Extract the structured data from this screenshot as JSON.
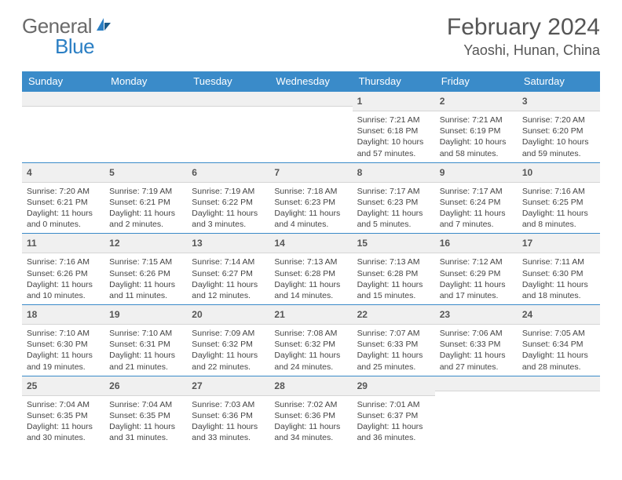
{
  "logo": {
    "text1": "General",
    "text2": "Blue"
  },
  "header": {
    "month_title": "February 2024",
    "location": "Yaoshi, Hunan, China"
  },
  "style": {
    "header_bg": "#3a8bc9",
    "header_fg": "#ffffff",
    "daynum_bg": "#f0f0f0",
    "daynum_border_top": "#3a8bc9",
    "body_fontsize": 10.5
  },
  "weekdays": [
    "Sunday",
    "Monday",
    "Tuesday",
    "Wednesday",
    "Thursday",
    "Friday",
    "Saturday"
  ],
  "weeks": [
    [
      null,
      null,
      null,
      null,
      {
        "n": "1",
        "sr": "Sunrise: 7:21 AM",
        "ss": "Sunset: 6:18 PM",
        "dl": "Daylight: 10 hours and 57 minutes."
      },
      {
        "n": "2",
        "sr": "Sunrise: 7:21 AM",
        "ss": "Sunset: 6:19 PM",
        "dl": "Daylight: 10 hours and 58 minutes."
      },
      {
        "n": "3",
        "sr": "Sunrise: 7:20 AM",
        "ss": "Sunset: 6:20 PM",
        "dl": "Daylight: 10 hours and 59 minutes."
      }
    ],
    [
      {
        "n": "4",
        "sr": "Sunrise: 7:20 AM",
        "ss": "Sunset: 6:21 PM",
        "dl": "Daylight: 11 hours and 0 minutes."
      },
      {
        "n": "5",
        "sr": "Sunrise: 7:19 AM",
        "ss": "Sunset: 6:21 PM",
        "dl": "Daylight: 11 hours and 2 minutes."
      },
      {
        "n": "6",
        "sr": "Sunrise: 7:19 AM",
        "ss": "Sunset: 6:22 PM",
        "dl": "Daylight: 11 hours and 3 minutes."
      },
      {
        "n": "7",
        "sr": "Sunrise: 7:18 AM",
        "ss": "Sunset: 6:23 PM",
        "dl": "Daylight: 11 hours and 4 minutes."
      },
      {
        "n": "8",
        "sr": "Sunrise: 7:17 AM",
        "ss": "Sunset: 6:23 PM",
        "dl": "Daylight: 11 hours and 5 minutes."
      },
      {
        "n": "9",
        "sr": "Sunrise: 7:17 AM",
        "ss": "Sunset: 6:24 PM",
        "dl": "Daylight: 11 hours and 7 minutes."
      },
      {
        "n": "10",
        "sr": "Sunrise: 7:16 AM",
        "ss": "Sunset: 6:25 PM",
        "dl": "Daylight: 11 hours and 8 minutes."
      }
    ],
    [
      {
        "n": "11",
        "sr": "Sunrise: 7:16 AM",
        "ss": "Sunset: 6:26 PM",
        "dl": "Daylight: 11 hours and 10 minutes."
      },
      {
        "n": "12",
        "sr": "Sunrise: 7:15 AM",
        "ss": "Sunset: 6:26 PM",
        "dl": "Daylight: 11 hours and 11 minutes."
      },
      {
        "n": "13",
        "sr": "Sunrise: 7:14 AM",
        "ss": "Sunset: 6:27 PM",
        "dl": "Daylight: 11 hours and 12 minutes."
      },
      {
        "n": "14",
        "sr": "Sunrise: 7:13 AM",
        "ss": "Sunset: 6:28 PM",
        "dl": "Daylight: 11 hours and 14 minutes."
      },
      {
        "n": "15",
        "sr": "Sunrise: 7:13 AM",
        "ss": "Sunset: 6:28 PM",
        "dl": "Daylight: 11 hours and 15 minutes."
      },
      {
        "n": "16",
        "sr": "Sunrise: 7:12 AM",
        "ss": "Sunset: 6:29 PM",
        "dl": "Daylight: 11 hours and 17 minutes."
      },
      {
        "n": "17",
        "sr": "Sunrise: 7:11 AM",
        "ss": "Sunset: 6:30 PM",
        "dl": "Daylight: 11 hours and 18 minutes."
      }
    ],
    [
      {
        "n": "18",
        "sr": "Sunrise: 7:10 AM",
        "ss": "Sunset: 6:30 PM",
        "dl": "Daylight: 11 hours and 19 minutes."
      },
      {
        "n": "19",
        "sr": "Sunrise: 7:10 AM",
        "ss": "Sunset: 6:31 PM",
        "dl": "Daylight: 11 hours and 21 minutes."
      },
      {
        "n": "20",
        "sr": "Sunrise: 7:09 AM",
        "ss": "Sunset: 6:32 PM",
        "dl": "Daylight: 11 hours and 22 minutes."
      },
      {
        "n": "21",
        "sr": "Sunrise: 7:08 AM",
        "ss": "Sunset: 6:32 PM",
        "dl": "Daylight: 11 hours and 24 minutes."
      },
      {
        "n": "22",
        "sr": "Sunrise: 7:07 AM",
        "ss": "Sunset: 6:33 PM",
        "dl": "Daylight: 11 hours and 25 minutes."
      },
      {
        "n": "23",
        "sr": "Sunrise: 7:06 AM",
        "ss": "Sunset: 6:33 PM",
        "dl": "Daylight: 11 hours and 27 minutes."
      },
      {
        "n": "24",
        "sr": "Sunrise: 7:05 AM",
        "ss": "Sunset: 6:34 PM",
        "dl": "Daylight: 11 hours and 28 minutes."
      }
    ],
    [
      {
        "n": "25",
        "sr": "Sunrise: 7:04 AM",
        "ss": "Sunset: 6:35 PM",
        "dl": "Daylight: 11 hours and 30 minutes."
      },
      {
        "n": "26",
        "sr": "Sunrise: 7:04 AM",
        "ss": "Sunset: 6:35 PM",
        "dl": "Daylight: 11 hours and 31 minutes."
      },
      {
        "n": "27",
        "sr": "Sunrise: 7:03 AM",
        "ss": "Sunset: 6:36 PM",
        "dl": "Daylight: 11 hours and 33 minutes."
      },
      {
        "n": "28",
        "sr": "Sunrise: 7:02 AM",
        "ss": "Sunset: 6:36 PM",
        "dl": "Daylight: 11 hours and 34 minutes."
      },
      {
        "n": "29",
        "sr": "Sunrise: 7:01 AM",
        "ss": "Sunset: 6:37 PM",
        "dl": "Daylight: 11 hours and 36 minutes."
      },
      null,
      null
    ]
  ]
}
